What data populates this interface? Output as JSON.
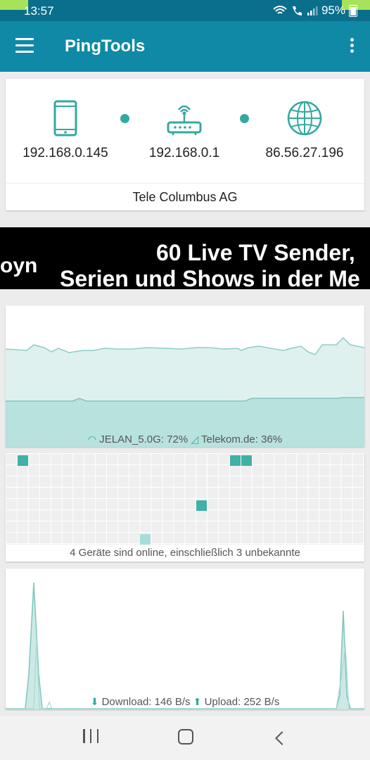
{
  "status_bar": {
    "time": "13:57",
    "battery": "95%"
  },
  "app_bar": {
    "title": "PingTools"
  },
  "network": {
    "nodes": [
      {
        "icon": "phone-icon",
        "ip": "192.168.0.145"
      },
      {
        "icon": "router-icon",
        "ip": "192.168.0.1"
      },
      {
        "icon": "globe-icon",
        "ip": "86.56.27.196"
      }
    ],
    "provider": "Tele Columbus AG"
  },
  "ad": {
    "brand": "oyn",
    "line1": "60 Live TV Sender,",
    "line2": "Serien und Shows in der Me"
  },
  "signal": {
    "wifi_label": "JELAN_5.0G: 72%",
    "cell_label": "Telekom.de: 36%",
    "wifi_percent": 72,
    "cell_percent": 36
  },
  "devices": {
    "summary": "4 Geräte sind online, einschließlich 3 unbekannte",
    "online_count": 4,
    "unknown_count": 3
  },
  "traffic": {
    "download_label": "Download: 146 B/s",
    "upload_label": "Upload: 252 B/s"
  },
  "colors": {
    "accent": "#0f89a6",
    "teal": "#33a99f",
    "status_bar": "#0a6f8c"
  }
}
